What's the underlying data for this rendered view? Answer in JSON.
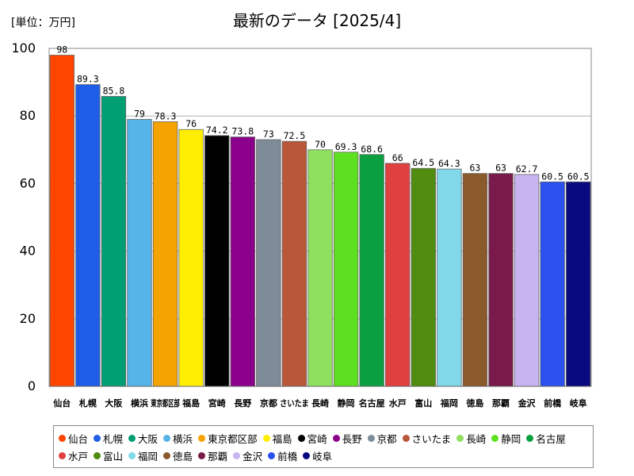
{
  "chart_data": {
    "type": "bar",
    "title": "最新のデータ [2025/4]",
    "unit_label": "[単位：万円]",
    "ylim": [
      0,
      100
    ],
    "yticks": [
      0,
      20,
      40,
      60,
      80,
      100
    ],
    "grid": true,
    "legend_position": "bottom",
    "categories": [
      "仙台",
      "札幌",
      "大阪",
      "横浜",
      "東京都区部",
      "福島",
      "宮崎",
      "長野",
      "京都",
      "さいたま",
      "長崎",
      "静岡",
      "名古屋",
      "水戸",
      "富山",
      "福岡",
      "徳島",
      "那覇",
      "金沢",
      "前橋",
      "岐阜"
    ],
    "values": [
      98,
      89.3,
      85.8,
      79,
      78.3,
      76,
      74.2,
      73.8,
      73,
      72.5,
      70,
      69.3,
      68.6,
      66,
      64.5,
      64.3,
      63,
      63,
      62.7,
      60.5,
      60.5
    ],
    "value_labels": [
      "98",
      "89.3",
      "85.8",
      "79",
      "78.3",
      "76",
      "74.2",
      "73.8",
      "73",
      "72.5",
      "70",
      "69.3",
      "68.6",
      "66",
      "64.5",
      "64.3",
      "63",
      "63",
      "62.7",
      "60.5",
      "60.5"
    ],
    "colors": [
      "#ff4500",
      "#1e5ee6",
      "#009e73",
      "#56b4e9",
      "#f5a300",
      "#ffee00",
      "#000000",
      "#8b008b",
      "#7e8c99",
      "#b8573a",
      "#90e060",
      "#5ee020",
      "#0aa040",
      "#e04040",
      "#4f8c10",
      "#80d8e8",
      "#8b5a2b",
      "#7a1a4a",
      "#c8b4f0",
      "#2a50f0",
      "#0a0a80"
    ]
  }
}
